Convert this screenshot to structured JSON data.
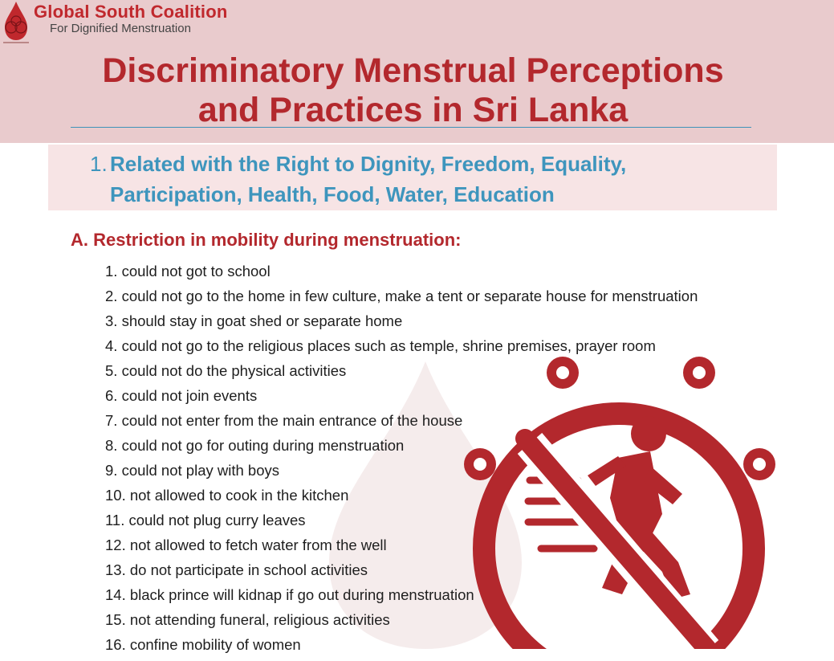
{
  "header": {
    "org_name": "Global South Coalition",
    "org_tagline": "For Dignified Menstruation",
    "title_line1": "Discriminatory Menstrual Perceptions",
    "title_line2": "and Practices in  Sri Lanka"
  },
  "section": {
    "number": "1.",
    "title_line1": "Related with the Right to Dignity, Freedom, Equality,",
    "title_line2": "Participation, Health, Food, Water, Education"
  },
  "subsection": {
    "heading": "A. Restriction in mobility during menstruation:",
    "items": [
      "1. could not got to school",
      "2. could not go to the home in few culture, make a tent or separate house for menstruation",
      "3. should stay in goat shed or separate home",
      "4. could not go to the religious places such as temple, shrine premises, prayer room",
      "5. could not do the physical activities",
      "6. could not join events",
      "7. could not enter from the main entrance of the house",
      "8. could not go for outing during menstruation",
      "9. could not play with boys",
      "10. not allowed to cook in the kitchen",
      "11. could not plug curry leaves",
      "12. not allowed to fetch water from the well",
      "13. do not participate in school activities",
      "14. black prince will kidnap if go out during menstruation",
      "15. not attending funeral, religious activities",
      "16. confine mobility of women"
    ]
  },
  "icons": {
    "logo": "drop-logo-icon",
    "restriction": "no-walking-icon",
    "watermark": "drop-watermark-icon"
  },
  "colors": {
    "accent_red": "#b3282d",
    "accent_blue": "#3e95bd",
    "header_band": "#e9cbcd",
    "section_band": "#f7e4e5"
  }
}
